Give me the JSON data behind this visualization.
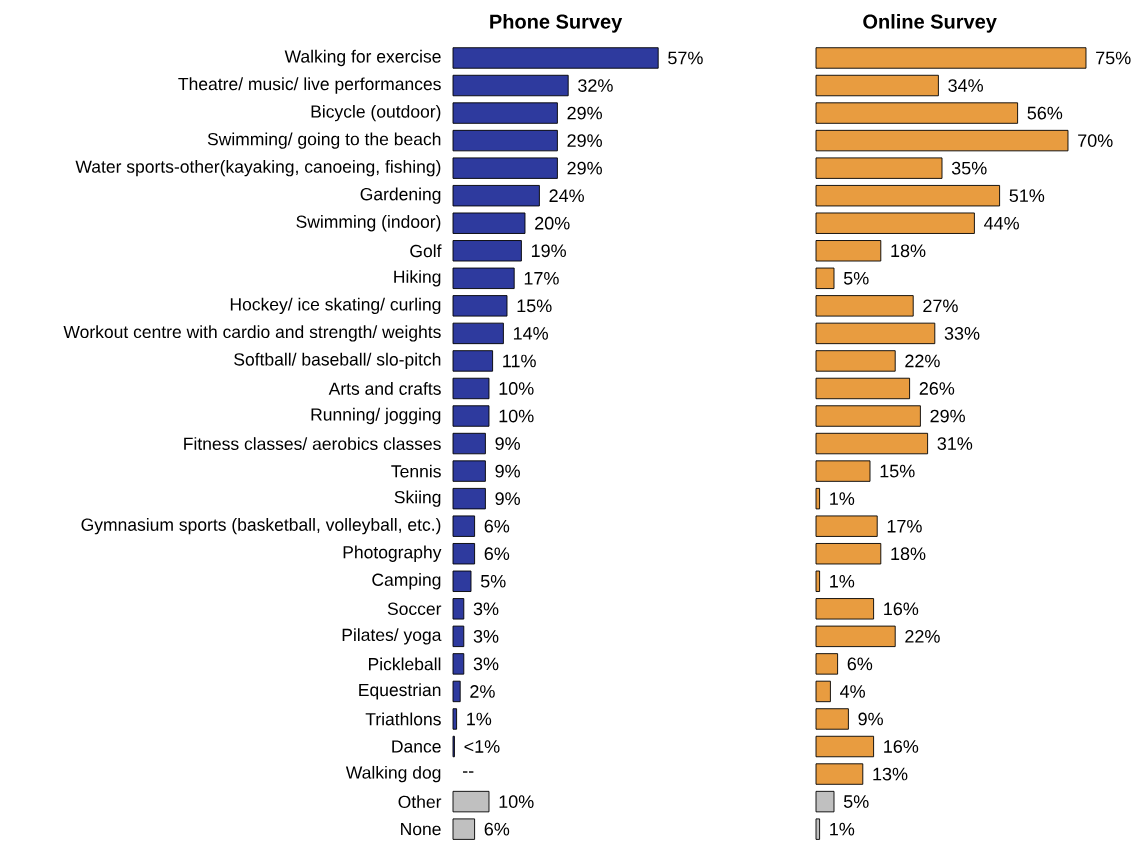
{
  "chart_data": [
    {
      "type": "bar",
      "orientation": "horizontal",
      "title": "Phone Survey",
      "tick_labels": "y",
      "categories": [
        "Walking for exercise",
        "Theatre/ music/ live performances",
        "Bicycle (outdoor)",
        "Swimming/ going to the beach",
        "Water sports-other(kayaking, canoeing, fishing)",
        "Gardening",
        "Swimming (indoor)",
        "Golf",
        "Hiking",
        "Hockey/ ice skating/ curling",
        "Workout centre with cardio and strength/ weights",
        "Softball/ baseball/ slo-pitch",
        "Arts and crafts",
        "Running/ jogging",
        "Fitness classes/ aerobics classes",
        "Tennis",
        "Skiing",
        "Gymnasium sports (basketball, volleyball, etc.)",
        "Photography",
        "Camping",
        "Soccer",
        "Pilates/ yoga",
        "Pickleball",
        "Equestrian",
        "Triathlons",
        "Dance",
        "Walking dog",
        "Other",
        "None"
      ],
      "values": [
        57,
        32,
        29,
        29,
        29,
        24,
        20,
        19,
        17,
        15,
        14,
        11,
        10,
        10,
        9,
        9,
        9,
        6,
        6,
        5,
        3,
        3,
        3,
        2,
        1,
        0.4,
        null,
        10,
        6
      ],
      "value_labels": [
        "57%",
        "32%",
        "29%",
        "29%",
        "29%",
        "24%",
        "20%",
        "19%",
        "17%",
        "15%",
        "14%",
        "11%",
        "10%",
        "10%",
        "9%",
        "9%",
        "9%",
        "6%",
        "6%",
        "5%",
        "3%",
        "3%",
        "3%",
        "2%",
        "1%",
        "<1%",
        "--",
        "10%",
        "6%"
      ],
      "colors": [
        "#2e3a9e",
        "#2e3a9e",
        "#2e3a9e",
        "#2e3a9e",
        "#2e3a9e",
        "#2e3a9e",
        "#2e3a9e",
        "#2e3a9e",
        "#2e3a9e",
        "#2e3a9e",
        "#2e3a9e",
        "#2e3a9e",
        "#2e3a9e",
        "#2e3a9e",
        "#2e3a9e",
        "#2e3a9e",
        "#2e3a9e",
        "#2e3a9e",
        "#2e3a9e",
        "#2e3a9e",
        "#2e3a9e",
        "#2e3a9e",
        "#2e3a9e",
        "#2e3a9e",
        "#2e3a9e",
        "#2e3a9e",
        "#2e3a9e",
        "#c0c0c0",
        "#c0c0c0"
      ]
    },
    {
      "type": "bar",
      "orientation": "horizontal",
      "title": "Online Survey",
      "tick_labels": false,
      "categories": [
        null,
        null,
        null,
        null,
        null,
        null,
        null,
        null,
        null,
        null,
        null,
        null,
        null,
        null,
        null,
        null,
        null,
        null,
        null,
        null,
        null,
        null,
        null,
        null,
        null,
        null,
        null,
        null,
        null
      ],
      "values": [
        75,
        34,
        56,
        70,
        35,
        51,
        44,
        18,
        5,
        27,
        33,
        22,
        26,
        29,
        31,
        15,
        1,
        17,
        18,
        1,
        16,
        22,
        6,
        4,
        9,
        16,
        13,
        5,
        1
      ],
      "value_labels": [
        "75%",
        "34%",
        "56%",
        "70%",
        "35%",
        "51%",
        "44%",
        "18%",
        "5%",
        "27%",
        "33%",
        "22%",
        "26%",
        "29%",
        "31%",
        "15%",
        "1%",
        "17%",
        "18%",
        "1%",
        "16%",
        "22%",
        "6%",
        "4%",
        "9%",
        "16%",
        "13%",
        "5%",
        "1%"
      ],
      "colors": [
        "#e89c40",
        "#e89c40",
        "#e89c40",
        "#e89c40",
        "#e89c40",
        "#e89c40",
        "#e89c40",
        "#e89c40",
        "#e89c40",
        "#e89c40",
        "#e89c40",
        "#e89c40",
        "#e89c40",
        "#e89c40",
        "#e89c40",
        "#e89c40",
        "#e89c40",
        "#e89c40",
        "#e89c40",
        "#e89c40",
        "#e89c40",
        "#e89c40",
        "#e89c40",
        "#e89c40",
        "#e89c40",
        "#e89c40",
        "#e89c40",
        "#c0c0c0",
        "#c0c0c0"
      ]
    }
  ]
}
